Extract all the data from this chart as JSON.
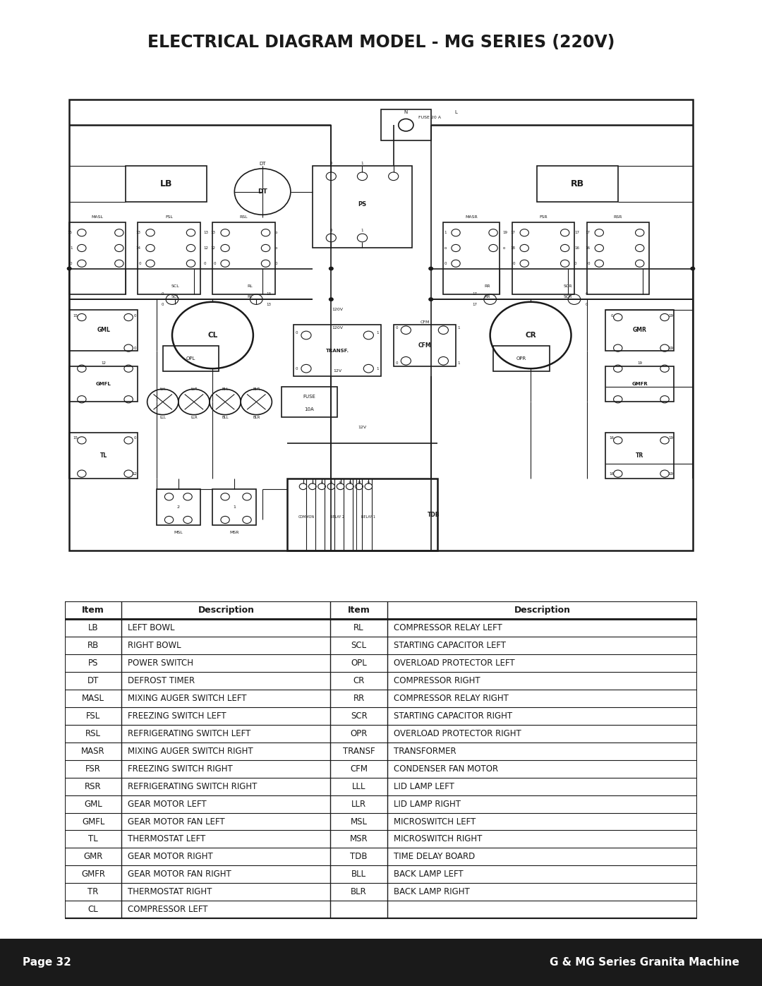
{
  "title": "ELECTRICAL DIAGRAM MODEL - MG SERIES (220V)",
  "footer_left": "Page 32",
  "footer_right": "G & MG Series Granita Machine",
  "footer_bg": "#1a1a1a",
  "footer_text_color": "#ffffff",
  "table_headers": [
    "Item",
    "Description",
    "Item",
    "Description"
  ],
  "table_rows": [
    [
      "LB",
      "LEFT BOWL",
      "RL",
      "COMPRESSOR RELAY LEFT"
    ],
    [
      "RB",
      "RIGHT BOWL",
      "SCL",
      "STARTING CAPACITOR LEFT"
    ],
    [
      "PS",
      "POWER SWITCH",
      "OPL",
      "OVERLOAD PROTECTOR LEFT"
    ],
    [
      "DT",
      "DEFROST TIMER",
      "CR",
      "COMPRESSOR RIGHT"
    ],
    [
      "MASL",
      "MIXING AUGER SWITCH LEFT",
      "RR",
      "COMPRESSOR RELAY RIGHT"
    ],
    [
      "FSL",
      "FREEZING SWITCH LEFT",
      "SCR",
      "STARTING CAPACITOR RIGHT"
    ],
    [
      "RSL",
      "REFRIGERATING SWITCH LEFT",
      "OPR",
      "OVERLOAD PROTECTOR RIGHT"
    ],
    [
      "MASR",
      "MIXING AUGER SWITCH RIGHT",
      "TRANSF",
      "TRANSFORMER"
    ],
    [
      "FSR",
      "FREEZING SWITCH RIGHT",
      "CFM",
      "CONDENSER FAN MOTOR"
    ],
    [
      "RSR",
      "REFRIGERATING SWITCH RIGHT",
      "LLL",
      "LID LAMP LEFT"
    ],
    [
      "GML",
      "GEAR MOTOR LEFT",
      "LLR",
      "LID LAMP RIGHT"
    ],
    [
      "GMFL",
      "GEAR MOTOR FAN LEFT",
      "MSL",
      "MICROSWITCH LEFT"
    ],
    [
      "TL",
      "THERMOSTAT LEFT",
      "MSR",
      "MICROSWITCH RIGHT"
    ],
    [
      "GMR",
      "GEAR MOTOR RIGHT",
      "TDB",
      "TIME DELAY BOARD"
    ],
    [
      "GMFR",
      "GEAR MOTOR FAN RIGHT",
      "BLL",
      "BACK LAMP LEFT"
    ],
    [
      "TR",
      "THERMOSTAT RIGHT",
      "BLR",
      "BACK LAMP RIGHT"
    ],
    [
      "CL",
      "COMPRESSOR LEFT",
      "",
      ""
    ]
  ],
  "bg_color": "#ffffff",
  "line_color": "#1a1a1a",
  "title_fontsize": 17,
  "table_fontsize": 8.5
}
